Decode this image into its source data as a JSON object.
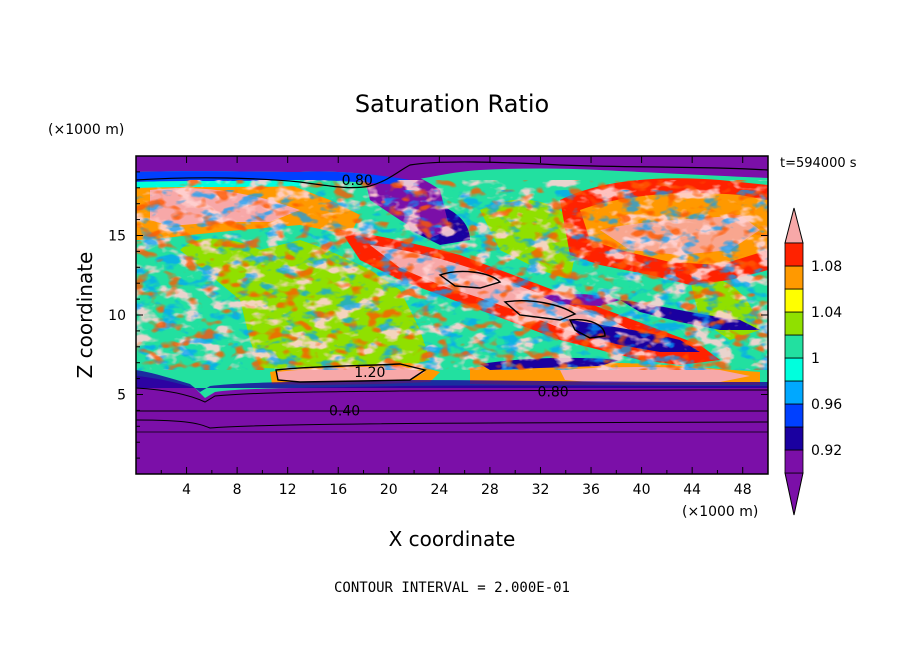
{
  "chart_data": {
    "type": "heatmap",
    "title": "Saturation Ratio",
    "xlabel": "X coordinate",
    "ylabel": "Z coordinate",
    "x_unit": "(×1000 m)",
    "y_unit": "(×1000 m)",
    "time_label": "t=594000 s",
    "footer": "CONTOUR INTERVAL = 2.000E-01",
    "xlim": [
      0,
      50
    ],
    "ylim": [
      0,
      20
    ],
    "x_ticks": [
      4,
      8,
      12,
      16,
      20,
      24,
      28,
      32,
      36,
      40,
      44,
      48
    ],
    "y_ticks": [
      5,
      10,
      15
    ],
    "contour_labels": [
      {
        "text": "0.80",
        "x": 17.5,
        "z": 18.5
      },
      {
        "text": "0.80",
        "x": 33,
        "z": 5.2
      },
      {
        "text": "0.40",
        "x": 16.5,
        "z": 4.0
      },
      {
        "text": "1.20",
        "x": 18.5,
        "z": 6.4
      }
    ],
    "colorbar": {
      "levels": [
        0.9,
        0.92,
        0.94,
        0.96,
        0.98,
        1.0,
        1.02,
        1.04,
        1.06,
        1.08,
        1.1
      ],
      "tick_labels": [
        "0.92",
        "0.96",
        "1",
        "1.04",
        "1.08"
      ],
      "tick_values": [
        0.92,
        0.96,
        1.0,
        1.04,
        1.08
      ],
      "colors": [
        "#7b0fa8",
        "#1a00a0",
        "#0040ff",
        "#00a8ff",
        "#00ffdd",
        "#22e0a0",
        "#90e000",
        "#ffff00",
        "#ff9900",
        "#ff2200",
        "#ff4040",
        "#f7a8a8"
      ],
      "min_color": "#7b0fa8",
      "max_color": "#f7a8a8"
    }
  }
}
